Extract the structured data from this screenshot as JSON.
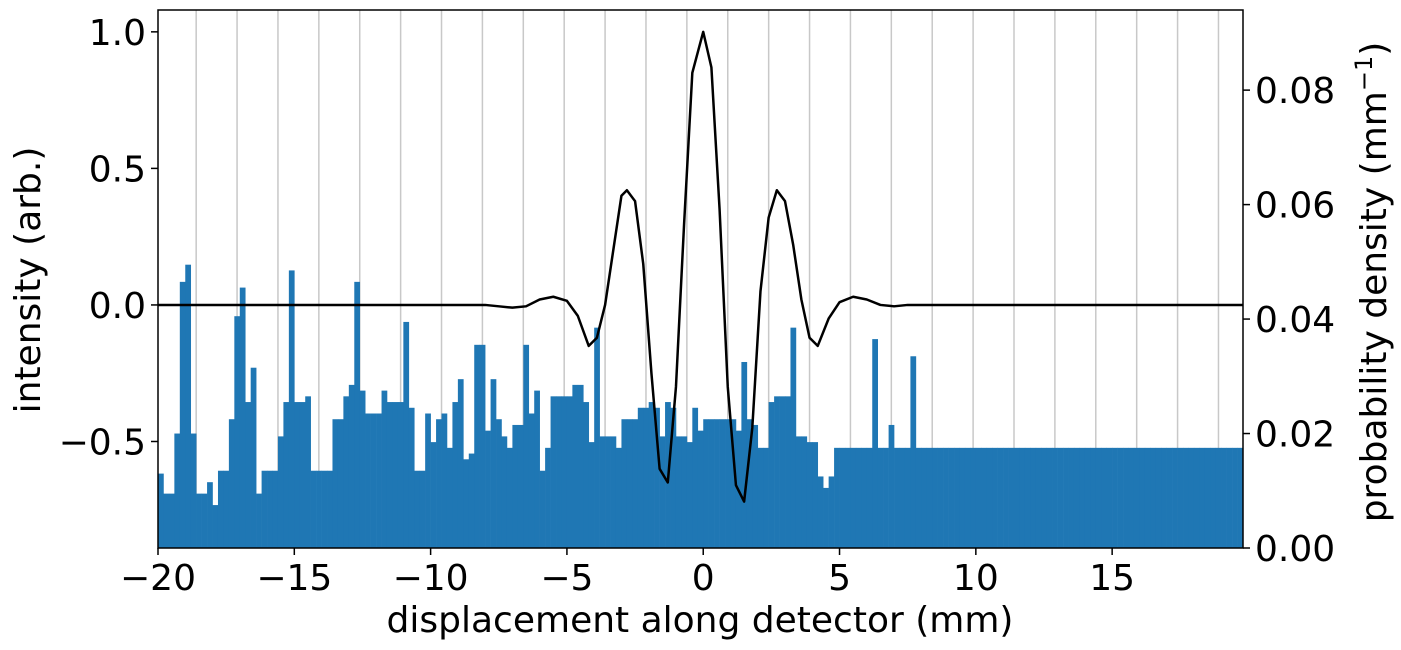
{
  "chart_data": {
    "type": "bar",
    "title": "",
    "xlabel": "displacement along detector (mm)",
    "ylabel_left": "intensity (arb.)",
    "ylabel_right": "probability density (mm",
    "ylabel_right_sup": "−1",
    "ylabel_right_tail": ")",
    "xlim": [
      -20,
      19.8
    ],
    "ylim_left": [
      -0.89,
      1.08
    ],
    "ylim_right": [
      0,
      0.094
    ],
    "x_ticks": [
      -20,
      -15,
      -10,
      -5,
      0,
      5,
      10,
      15
    ],
    "x_tick_labels": [
      "−20",
      "−15",
      "−10",
      "−5",
      "0",
      "5",
      "10",
      "15"
    ],
    "y_left_ticks": [
      -0.5,
      0.0,
      0.5,
      1.0
    ],
    "y_left_tick_labels": [
      "−0.5",
      "0.0",
      "0.5",
      "1.0"
    ],
    "y_right_ticks": [
      0.0,
      0.02,
      0.04,
      0.06,
      0.08
    ],
    "y_right_tick_labels": [
      "0.00",
      "0.02",
      "0.04",
      "0.06",
      "0.08"
    ],
    "grid": "vertical",
    "grid_x": [
      -18.6,
      -17.1,
      -15.6,
      -14.1,
      -12.6,
      -11.1,
      -9.6,
      -8.1,
      -6.6,
      -5.1,
      -3.6,
      -2.1,
      -0.6,
      0.9,
      2.4,
      3.9,
      5.4,
      6.9,
      8.4,
      9.9,
      11.4,
      12.9,
      14.4,
      15.9,
      17.4,
      18.9
    ],
    "bar_color": "#1f77b4",
    "line_color": "#000000",
    "series": [
      {
        "kind": "histogram",
        "axis": "right",
        "bin_start": -20.0,
        "bin_width": 0.2,
        "values": [
          0.013,
          0.0095,
          0.0095,
          0.02,
          0.0465,
          0.0495,
          0.02,
          0.0095,
          0.0095,
          0.0115,
          0.0075,
          0.0135,
          0.0135,
          0.0225,
          0.0405,
          0.0455,
          0.0255,
          0.0315,
          0.0095,
          0.0135,
          0.0135,
          0.0135,
          0.0195,
          0.0255,
          0.0485,
          0.0255,
          0.0255,
          0.0265,
          0.0135,
          0.0135,
          0.0135,
          0.0135,
          0.0225,
          0.0225,
          0.0265,
          0.0285,
          0.0465,
          0.0275,
          0.0235,
          0.0235,
          0.0235,
          0.0275,
          0.0255,
          0.0255,
          0.0255,
          0.0395,
          0.0245,
          0.0135,
          0.0135,
          0.0235,
          0.0185,
          0.0225,
          0.0235,
          0.0175,
          0.0255,
          0.0295,
          0.0155,
          0.0165,
          0.0355,
          0.0355,
          0.0205,
          0.0295,
          0.0225,
          0.0195,
          0.0175,
          0.0215,
          0.0215,
          0.0355,
          0.0235,
          0.0275,
          0.0135,
          0.0175,
          0.0265,
          0.0265,
          0.0265,
          0.0265,
          0.0285,
          0.0285,
          0.0255,
          0.0185,
          0.0385,
          0.0195,
          0.0195,
          0.0195,
          0.0175,
          0.0225,
          0.0225,
          0.0225,
          0.0245,
          0.0245,
          0.0255,
          0.0245,
          0.0195,
          0.0255,
          0.0245,
          0.0195,
          0.0195,
          0.0185,
          0.0245,
          0.0205,
          0.0225,
          0.0225,
          0.0225,
          0.0225,
          0.0225,
          0.0225,
          0.0205,
          0.0325,
          0.0225,
          0.0215,
          0.0175,
          0.0175,
          0.0255,
          0.0265,
          0.0265,
          0.0265,
          0.0385,
          0.0195,
          0.0195,
          0.0185,
          0.0185,
          0.0125,
          0.0105,
          0.0125,
          0.0175,
          0.0175,
          0.0175,
          0.0175,
          0.0175,
          0.0175,
          0.0175,
          0.0365,
          0.0175,
          0.0175,
          0.0215,
          0.0175,
          0.0175,
          0.0175,
          0.0335,
          0.0175,
          0.0175,
          0.0175,
          0.0175,
          0.0175,
          0.0175,
          0.0175,
          0.0175,
          0.0175,
          0.0175,
          0.0175,
          0.0175,
          0.0175,
          0.0175,
          0.0175,
          0.0175,
          0.0175,
          0.0175,
          0.0175,
          0.0175,
          0.0175,
          0.0175,
          0.0175,
          0.0175,
          0.0175,
          0.0175,
          0.0175,
          0.0175,
          0.0175,
          0.0175,
          0.0175,
          0.0175,
          0.0175,
          0.0175,
          0.0175,
          0.0175,
          0.0175,
          0.0175,
          0.0175,
          0.0175,
          0.0175,
          0.0175,
          0.0175,
          0.0175,
          0.0175,
          0.0175,
          0.0175,
          0.0175,
          0.0175,
          0.0175,
          0.0175,
          0.0175,
          0.0175,
          0.0175,
          0.0175,
          0.0175,
          0.0175,
          0.0175,
          0.0175,
          0.0175,
          0.0175,
          0.0175,
          0.0175,
          0.0175,
          0.0175,
          0.0175,
          0.0175,
          0.0175,
          0.0175,
          0.0175,
          0.0175,
          0.0175,
          0.0175,
          0.0175,
          0.0175,
          0.0175
        ]
      },
      {
        "kind": "line",
        "axis": "left",
        "points": [
          [
            -20,
            0
          ],
          [
            -9,
            0
          ],
          [
            -8,
            0
          ],
          [
            -7.5,
            -0.005
          ],
          [
            -7,
            -0.01
          ],
          [
            -6.5,
            -0.005
          ],
          [
            -6,
            0.02
          ],
          [
            -5.5,
            0.03
          ],
          [
            -5,
            0.015
          ],
          [
            -4.6,
            -0.04
          ],
          [
            -4.2,
            -0.15
          ],
          [
            -3.9,
            -0.12
          ],
          [
            -3.6,
            0.0
          ],
          [
            -3.3,
            0.2
          ],
          [
            -3.0,
            0.4
          ],
          [
            -2.8,
            0.42
          ],
          [
            -2.5,
            0.38
          ],
          [
            -2.2,
            0.15
          ],
          [
            -1.9,
            -0.25
          ],
          [
            -1.6,
            -0.6
          ],
          [
            -1.3,
            -0.65
          ],
          [
            -1.0,
            -0.3
          ],
          [
            -0.7,
            0.3
          ],
          [
            -0.4,
            0.85
          ],
          [
            0.0,
            1.0
          ],
          [
            0.3,
            0.87
          ],
          [
            0.6,
            0.35
          ],
          [
            0.9,
            -0.3
          ],
          [
            1.2,
            -0.66
          ],
          [
            1.5,
            -0.72
          ],
          [
            1.8,
            -0.45
          ],
          [
            2.1,
            0.05
          ],
          [
            2.4,
            0.32
          ],
          [
            2.7,
            0.42
          ],
          [
            3.0,
            0.38
          ],
          [
            3.3,
            0.22
          ],
          [
            3.6,
            0.02
          ],
          [
            3.9,
            -0.12
          ],
          [
            4.2,
            -0.15
          ],
          [
            4.6,
            -0.05
          ],
          [
            5.0,
            0.01
          ],
          [
            5.5,
            0.03
          ],
          [
            6.0,
            0.02
          ],
          [
            6.5,
            0.0
          ],
          [
            7.0,
            -0.005
          ],
          [
            7.5,
            0.0
          ],
          [
            8,
            0
          ],
          [
            19.8,
            0
          ]
        ]
      }
    ]
  }
}
